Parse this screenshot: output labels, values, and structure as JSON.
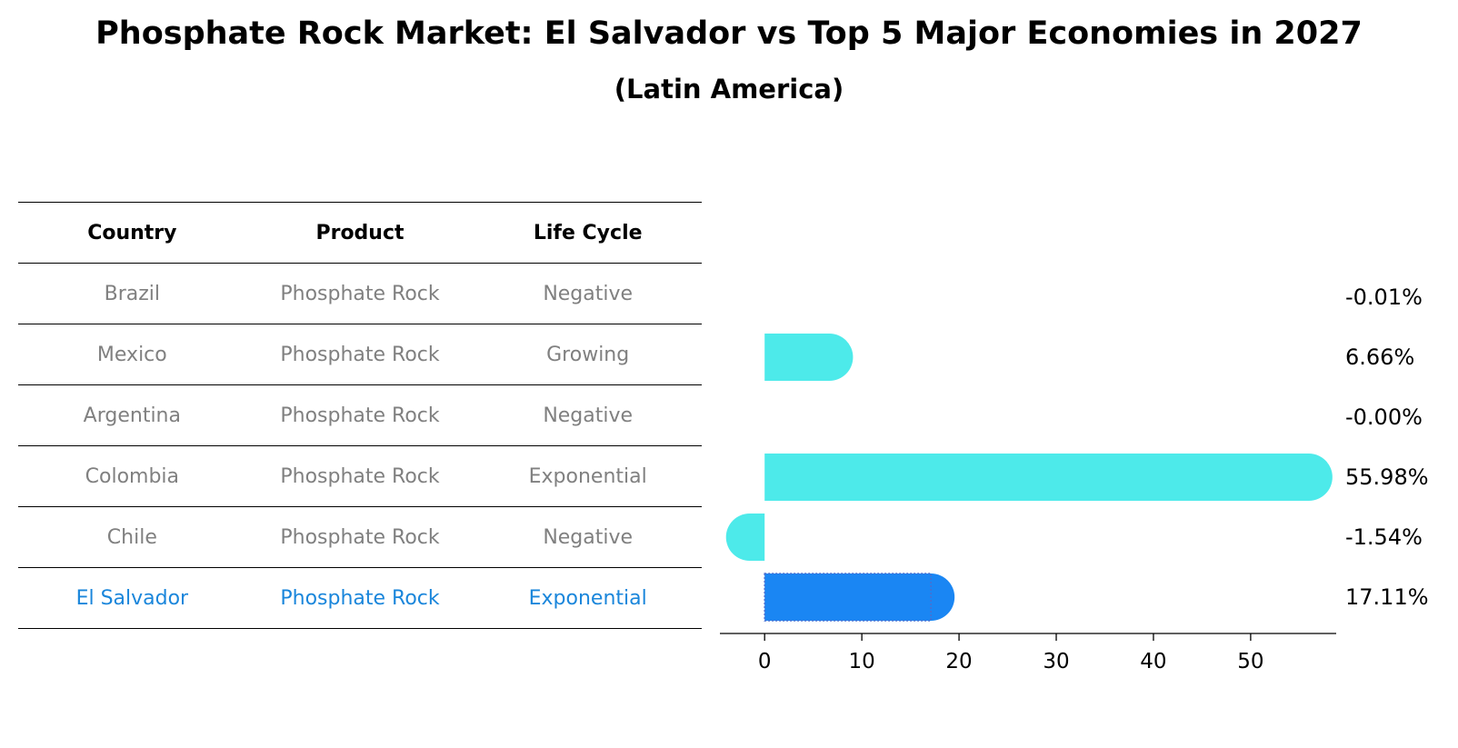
{
  "title": "Phosphate Rock Market: El Salvador vs Top 5 Major Economies in 2027",
  "subtitle": "(Latin America)",
  "table": {
    "headers": [
      "Country",
      "Product",
      "Life Cycle"
    ],
    "rows": [
      {
        "country": "Brazil",
        "product": "Phosphate Rock",
        "life_cycle": "Negative"
      },
      {
        "country": "Mexico",
        "product": "Phosphate Rock",
        "life_cycle": "Growing"
      },
      {
        "country": "Argentina",
        "product": "Phosphate Rock",
        "life_cycle": "Negative"
      },
      {
        "country": "Colombia",
        "product": "Phosphate Rock",
        "life_cycle": "Exponential"
      },
      {
        "country": "Chile",
        "product": "Phosphate Rock",
        "life_cycle": "Negative"
      },
      {
        "country": "El Salvador",
        "product": "Phosphate Rock",
        "life_cycle": "Exponential"
      }
    ]
  },
  "colors": {
    "bar": "#4deaea",
    "highlight_bar": "#1a86f3",
    "highlight_text": "#1a86db",
    "muted_text": "#808080"
  },
  "chart_data": {
    "type": "bar",
    "orientation": "horizontal",
    "categories": [
      "Brazil",
      "Mexico",
      "Argentina",
      "Colombia",
      "Chile",
      "El Salvador"
    ],
    "values": [
      -0.01,
      6.66,
      -0.0,
      55.98,
      -1.54,
      17.11
    ],
    "value_labels": [
      "-0.01%",
      "6.66%",
      "-0.00%",
      "55.98%",
      "-1.54%",
      "17.11%"
    ],
    "highlight_index": 5,
    "xlim": [
      -4.6,
      58.8
    ],
    "xticks": [
      0,
      10,
      20,
      30,
      40,
      50
    ],
    "xtick_labels": [
      "0",
      "10",
      "20",
      "30",
      "40",
      "50"
    ],
    "xlabel": "",
    "ylabel": "",
    "grid": false
  }
}
